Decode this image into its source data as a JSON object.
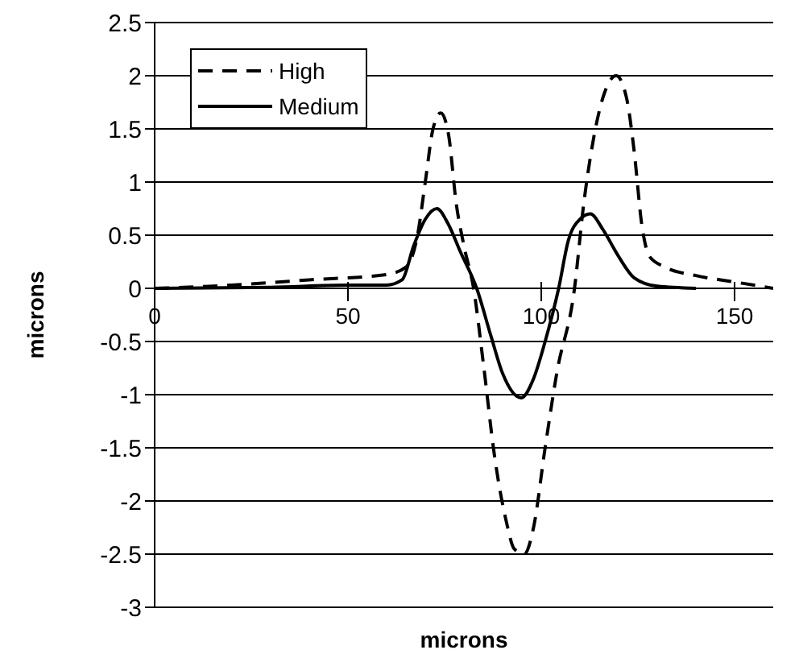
{
  "chart_data": {
    "type": "line",
    "xlabel": "microns",
    "ylabel": "microns",
    "xlim": [
      0,
      160
    ],
    "xticks": [
      0,
      50,
      100,
      150
    ],
    "ylim": [
      -3,
      2.5
    ],
    "yticks": [
      -3,
      -2.5,
      -2,
      -1.5,
      -1,
      -0.5,
      0,
      0.5,
      1,
      1.5,
      2,
      2.5
    ],
    "grid": "y",
    "legend": "top left",
    "marker": "none",
    "series": [
      {
        "name": "High",
        "color": "#000000",
        "line_style": "dashed",
        "x": [
          0,
          20,
          40,
          60,
          65,
          68,
          70,
          72,
          74,
          76,
          78,
          80,
          82.5,
          85,
          88,
          91,
          93,
          95.6,
          98,
          101,
          104,
          108.6,
          111,
          113,
          116,
          119.4,
          122,
          124,
          126,
          128,
          132,
          140,
          150,
          160
        ],
        "values": [
          0,
          0.03,
          0.08,
          0.13,
          0.2,
          0.5,
          1.0,
          1.5,
          1.65,
          1.45,
          0.8,
          0.4,
          0,
          -0.7,
          -1.6,
          -2.2,
          -2.45,
          -2.5,
          -2.25,
          -1.5,
          -0.8,
          0,
          0.8,
          1.3,
          1.8,
          2.0,
          1.8,
          1.3,
          0.6,
          0.3,
          0.2,
          0.12,
          0.06,
          0
        ]
      },
      {
        "name": "Medium",
        "color": "#000000",
        "line_style": "solid",
        "x": [
          0,
          30,
          50,
          60,
          64,
          67,
          70,
          73,
          76,
          79,
          83.3,
          87,
          90,
          94.8,
          98,
          101,
          104.5,
          107,
          110,
          112.7,
          116,
          120,
          124,
          130,
          140
        ],
        "values": [
          0,
          0.01,
          0.03,
          0.03,
          0.08,
          0.4,
          0.65,
          0.75,
          0.6,
          0.35,
          0,
          -0.45,
          -0.8,
          -1.03,
          -0.85,
          -0.5,
          0,
          0.45,
          0.65,
          0.7,
          0.55,
          0.3,
          0.1,
          0.02,
          0
        ]
      }
    ]
  }
}
